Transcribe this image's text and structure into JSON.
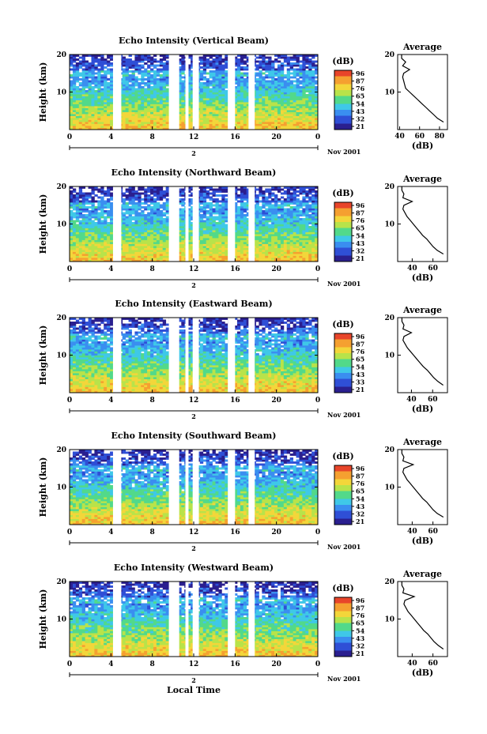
{
  "chart_data": [
    {
      "type": "heatmap",
      "title": "Echo Intensity (Vertical Beam)",
      "xlabel": "",
      "ylabel": "Height (km)",
      "xticks": [
        "0",
        "4",
        "8",
        "12",
        "16",
        "20",
        "0"
      ],
      "yticks": [
        "10",
        "20"
      ],
      "date_tick": "2",
      "date_label": "Nov 2001",
      "colorbar_unit": "(dB)",
      "colorbar_ticks": [
        "96",
        "87",
        "76",
        "65",
        "54",
        "43",
        "32",
        "21"
      ],
      "profile": {
        "title": "Average",
        "xlabel": "(dB)",
        "xticks": [
          "40",
          "60",
          "80"
        ],
        "yticks": [
          "10",
          "20"
        ],
        "height_km": [
          2,
          3,
          4,
          5,
          6,
          7,
          8,
          9,
          10,
          11,
          12,
          13,
          14,
          15,
          16,
          17,
          18,
          19,
          20
        ],
        "db": [
          84,
          78,
          74,
          70,
          66,
          62,
          58,
          54,
          50,
          46,
          45,
          44,
          43,
          44,
          50,
          43,
          46,
          42,
          42
        ]
      }
    },
    {
      "type": "heatmap",
      "title": "Echo Intensity (Northward Beam)",
      "xlabel": "",
      "ylabel": "Height (km)",
      "xticks": [
        "0",
        "4",
        "8",
        "12",
        "16",
        "20",
        "0"
      ],
      "yticks": [
        "10",
        "20"
      ],
      "date_tick": "2",
      "date_label": "Nov 2001",
      "colorbar_unit": "(dB)",
      "colorbar_ticks": [
        "96",
        "87",
        "76",
        "65",
        "54",
        "43",
        "32",
        "21"
      ],
      "profile": {
        "title": "Average",
        "xlabel": "(dB)",
        "xticks": [
          "40",
          "60"
        ],
        "yticks": [
          "10",
          "20"
        ],
        "height_km": [
          2,
          3,
          4,
          5,
          6,
          7,
          8,
          9,
          10,
          11,
          12,
          13,
          14,
          15,
          16,
          17,
          18,
          19,
          20
        ],
        "db": [
          70,
          64,
          60,
          57,
          54,
          50,
          47,
          44,
          41,
          38,
          35,
          33,
          31,
          32,
          40,
          31,
          32,
          30,
          30
        ]
      }
    },
    {
      "type": "heatmap",
      "title": "Echo Intensity (Eastward Beam)",
      "xlabel": "",
      "ylabel": "Height (km)",
      "xticks": [
        "0",
        "4",
        "8",
        "12",
        "16",
        "20",
        "0"
      ],
      "yticks": [
        "10",
        "20"
      ],
      "date_tick": "2",
      "date_label": "Nov 2001",
      "colorbar_unit": "(dB)",
      "colorbar_ticks": [
        "96",
        "87",
        "76",
        "65",
        "54",
        "43",
        "33",
        "21"
      ],
      "profile": {
        "title": "Average",
        "xlabel": "(dB)",
        "xticks": [
          "40",
          "60"
        ],
        "yticks": [
          "10",
          "20"
        ],
        "height_km": [
          2,
          3,
          4,
          5,
          6,
          7,
          8,
          9,
          10,
          11,
          12,
          13,
          14,
          15,
          16,
          17,
          18,
          19,
          20
        ],
        "db": [
          70,
          65,
          61,
          58,
          55,
          51,
          48,
          45,
          42,
          39,
          36,
          34,
          32,
          33,
          40,
          32,
          33,
          31,
          31
        ]
      }
    },
    {
      "type": "heatmap",
      "title": "Echo Intensity (Southward Beam)",
      "xlabel": "",
      "ylabel": "Height (km)",
      "xticks": [
        "0",
        "4",
        "8",
        "12",
        "16",
        "20",
        "0"
      ],
      "yticks": [
        "10",
        "20"
      ],
      "date_tick": "2",
      "date_label": "Nov 2001",
      "colorbar_unit": "(dB)",
      "colorbar_ticks": [
        "96",
        "87",
        "76",
        "65",
        "54",
        "43",
        "32",
        "21"
      ],
      "profile": {
        "title": "Average",
        "xlabel": "(dB)",
        "xticks": [
          "40",
          "60"
        ],
        "yticks": [
          "10",
          "20"
        ],
        "height_km": [
          2,
          3,
          4,
          5,
          6,
          7,
          8,
          9,
          10,
          11,
          12,
          13,
          14,
          15,
          16,
          17,
          18,
          19,
          20
        ],
        "db": [
          70,
          64,
          60,
          57,
          54,
          50,
          47,
          44,
          41,
          38,
          35,
          33,
          31,
          32,
          41,
          31,
          32,
          30,
          30
        ]
      }
    },
    {
      "type": "heatmap",
      "title": "Echo Intensity (Westward Beam)",
      "xlabel": "Local Time",
      "ylabel": "Height (km)",
      "xticks": [
        "0",
        "4",
        "8",
        "12",
        "16",
        "20",
        "0"
      ],
      "yticks": [
        "10",
        "20"
      ],
      "date_tick": "2",
      "date_label": "Nov 2001",
      "colorbar_unit": "(dB)",
      "colorbar_ticks": [
        "96",
        "87",
        "76",
        "65",
        "54",
        "43",
        "32",
        "21"
      ],
      "profile": {
        "title": "Average",
        "xlabel": "(dB)",
        "xticks": [
          "40",
          "60"
        ],
        "yticks": [
          "10",
          "20"
        ],
        "height_km": [
          2,
          3,
          4,
          5,
          6,
          7,
          8,
          9,
          10,
          11,
          12,
          13,
          14,
          15,
          16,
          17,
          18,
          19,
          20
        ],
        "db": [
          70,
          65,
          61,
          58,
          55,
          51,
          48,
          45,
          42,
          39,
          36,
          34,
          32,
          33,
          42,
          31,
          32,
          30,
          30
        ]
      }
    }
  ],
  "data_gaps_hours": [
    [
      4.2,
      5.0
    ],
    [
      9.6,
      10.6
    ],
    [
      11.2,
      11.5
    ],
    [
      11.9,
      12.5
    ],
    [
      15.3,
      16.0
    ],
    [
      17.3,
      17.9
    ]
  ],
  "colors": {
    "scale": [
      "#2a1f8f",
      "#2f4fd6",
      "#3a8ef0",
      "#3fc8e8",
      "#52d98a",
      "#b8e34a",
      "#f3d63a",
      "#f5a030",
      "#e8452a"
    ]
  }
}
